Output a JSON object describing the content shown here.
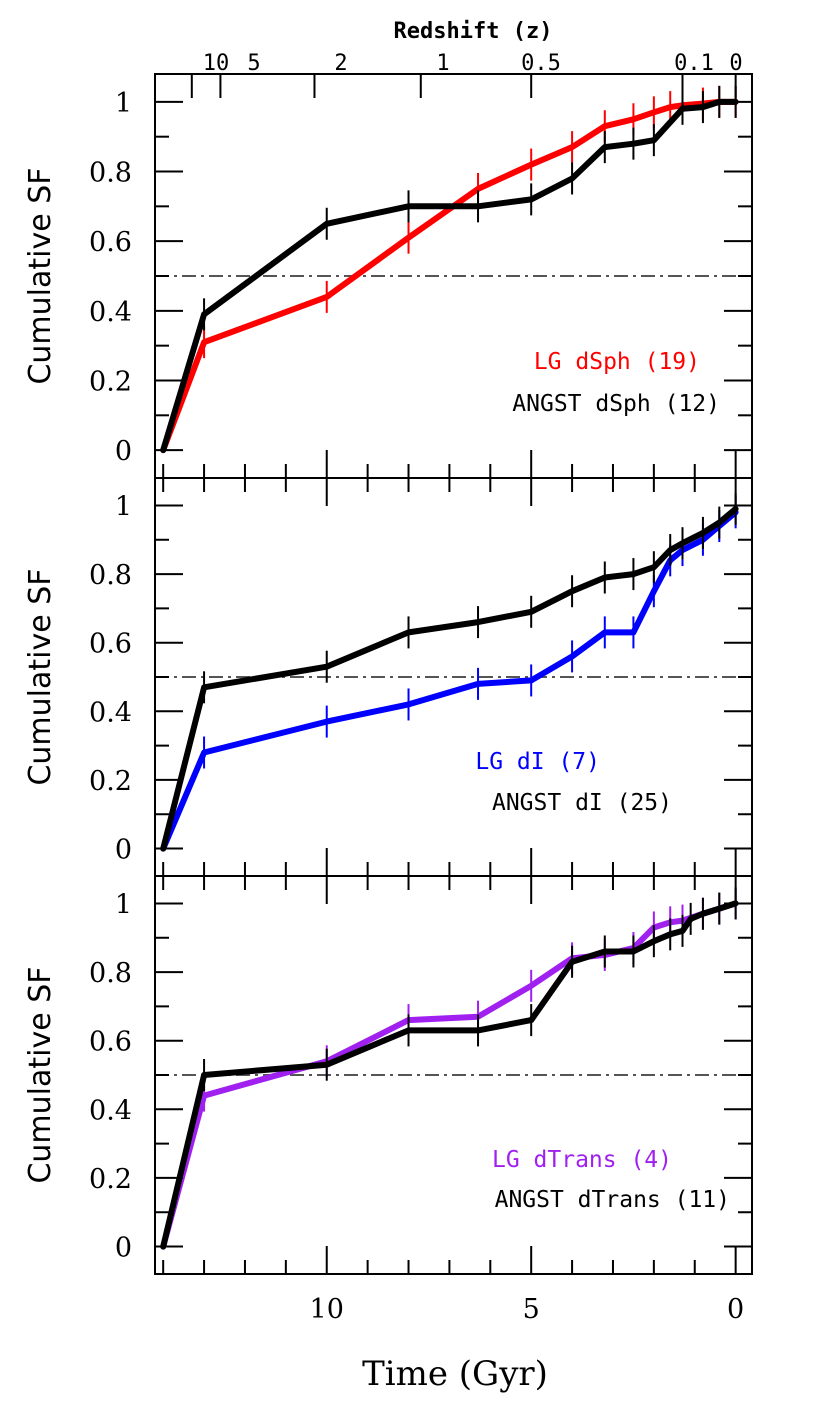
{
  "figure": {
    "top_axis_title": "Redshift (z)",
    "x_axis_title": "Time (Gyr)",
    "y_axis_title": "Cumulative SF"
  },
  "chart_data": [
    {
      "type": "line",
      "xlabel": "Time (Gyr)",
      "ylabel": "Cumulative SF",
      "xlim": [
        14.2,
        -0.4
      ],
      "ylim": [
        -0.08,
        1.08
      ],
      "x_reversed": true,
      "x_ticks": [
        10,
        5,
        0
      ],
      "y_ticks": [
        0,
        0.2,
        0.4,
        0.6,
        0.8,
        1
      ],
      "y_tick_labels": [
        "0",
        "0.2",
        "0.4",
        "0.6",
        "0.8",
        "1"
      ],
      "top_axis": {
        "title": "Redshift (z)",
        "tick_labels": [
          "10",
          "5",
          "2",
          "1",
          "0.5",
          "0.1",
          "0"
        ],
        "tick_times": [
          13.3,
          12.6,
          10.3,
          7.7,
          5.0,
          1.3,
          0.0
        ]
      },
      "reference_line": {
        "y": 0.5,
        "style": "dash-dot"
      },
      "legend_position": "lower-right",
      "series": [
        {
          "name": "LG dSph (19)",
          "color": "#ff0000",
          "x": [
            14.0,
            13.0,
            10.0,
            8.0,
            6.3,
            5.0,
            4.0,
            3.2,
            2.5,
            2.0,
            1.6,
            1.3,
            0.8,
            0.4,
            0.0
          ],
          "y": [
            0.0,
            0.31,
            0.44,
            0.61,
            0.75,
            0.82,
            0.87,
            0.93,
            0.95,
            0.97,
            0.985,
            0.99,
            0.995,
            1.0,
            1.0
          ]
        },
        {
          "name": "ANGST dSph (12)",
          "color": "#000000",
          "x": [
            14.0,
            13.0,
            10.0,
            8.0,
            6.3,
            5.0,
            4.0,
            3.2,
            2.5,
            2.0,
            1.3,
            0.8,
            0.4,
            0.0
          ],
          "y": [
            0.0,
            0.39,
            0.65,
            0.7,
            0.7,
            0.72,
            0.78,
            0.87,
            0.88,
            0.89,
            0.98,
            0.985,
            1.0,
            1.0
          ]
        }
      ]
    },
    {
      "type": "line",
      "xlabel": "Time (Gyr)",
      "ylabel": "Cumulative SF",
      "xlim": [
        14.2,
        -0.4
      ],
      "ylim": [
        -0.08,
        1.08
      ],
      "x_reversed": true,
      "x_ticks": [
        10,
        5,
        0
      ],
      "y_ticks": [
        0,
        0.2,
        0.4,
        0.6,
        0.8,
        1
      ],
      "y_tick_labels": [
        "0",
        "0.2",
        "0.4",
        "0.6",
        "0.8",
        "1"
      ],
      "reference_line": {
        "y": 0.5,
        "style": "dash-dot"
      },
      "legend_position": "lower-right",
      "series": [
        {
          "name": "LG dI (7)",
          "color": "#0000ff",
          "x": [
            14.0,
            13.0,
            10.0,
            8.0,
            6.3,
            5.0,
            4.0,
            3.2,
            2.5,
            2.0,
            1.6,
            1.3,
            0.8,
            0.4,
            0.0
          ],
          "y": [
            0.0,
            0.28,
            0.37,
            0.42,
            0.48,
            0.49,
            0.56,
            0.63,
            0.63,
            0.75,
            0.84,
            0.87,
            0.9,
            0.94,
            0.98
          ]
        },
        {
          "name": "ANGST dI (25)",
          "color": "#000000",
          "x": [
            14.0,
            13.0,
            10.0,
            8.0,
            6.3,
            5.0,
            4.0,
            3.2,
            2.5,
            2.0,
            1.6,
            1.3,
            0.8,
            0.4,
            0.0
          ],
          "y": [
            0.0,
            0.47,
            0.53,
            0.63,
            0.66,
            0.69,
            0.75,
            0.79,
            0.8,
            0.82,
            0.87,
            0.89,
            0.92,
            0.95,
            0.99
          ]
        }
      ]
    },
    {
      "type": "line",
      "xlabel": "Time (Gyr)",
      "ylabel": "Cumulative SF",
      "xlim": [
        14.2,
        -0.4
      ],
      "ylim": [
        -0.08,
        1.08
      ],
      "x_reversed": true,
      "x_ticks": [
        10,
        5,
        0
      ],
      "x_tick_labels": [
        "10",
        "5",
        "0"
      ],
      "y_ticks": [
        0,
        0.2,
        0.4,
        0.6,
        0.8,
        1
      ],
      "y_tick_labels": [
        "0",
        "0.2",
        "0.4",
        "0.6",
        "0.8",
        "1"
      ],
      "reference_line": {
        "y": 0.5,
        "style": "dash-dot"
      },
      "legend_position": "lower-right",
      "series": [
        {
          "name": "LG dTrans (4)",
          "color": "#a020f0",
          "x": [
            14.0,
            13.0,
            10.0,
            8.0,
            6.3,
            5.0,
            4.0,
            3.2,
            2.5,
            2.0,
            1.6,
            1.3,
            0.8,
            0.4,
            0.0
          ],
          "y": [
            0.0,
            0.44,
            0.54,
            0.66,
            0.67,
            0.76,
            0.84,
            0.85,
            0.87,
            0.93,
            0.945,
            0.95,
            0.97,
            0.985,
            1.0
          ]
        },
        {
          "name": "ANGST dTrans (11)",
          "color": "#000000",
          "x": [
            14.0,
            13.0,
            10.0,
            8.0,
            6.3,
            5.0,
            4.0,
            3.2,
            2.5,
            2.0,
            1.6,
            1.3,
            1.1,
            0.8,
            0.4,
            0.0
          ],
          "y": [
            0.0,
            0.5,
            0.53,
            0.63,
            0.63,
            0.66,
            0.83,
            0.86,
            0.86,
            0.89,
            0.91,
            0.92,
            0.955,
            0.97,
            0.985,
            1.0
          ]
        }
      ]
    }
  ]
}
